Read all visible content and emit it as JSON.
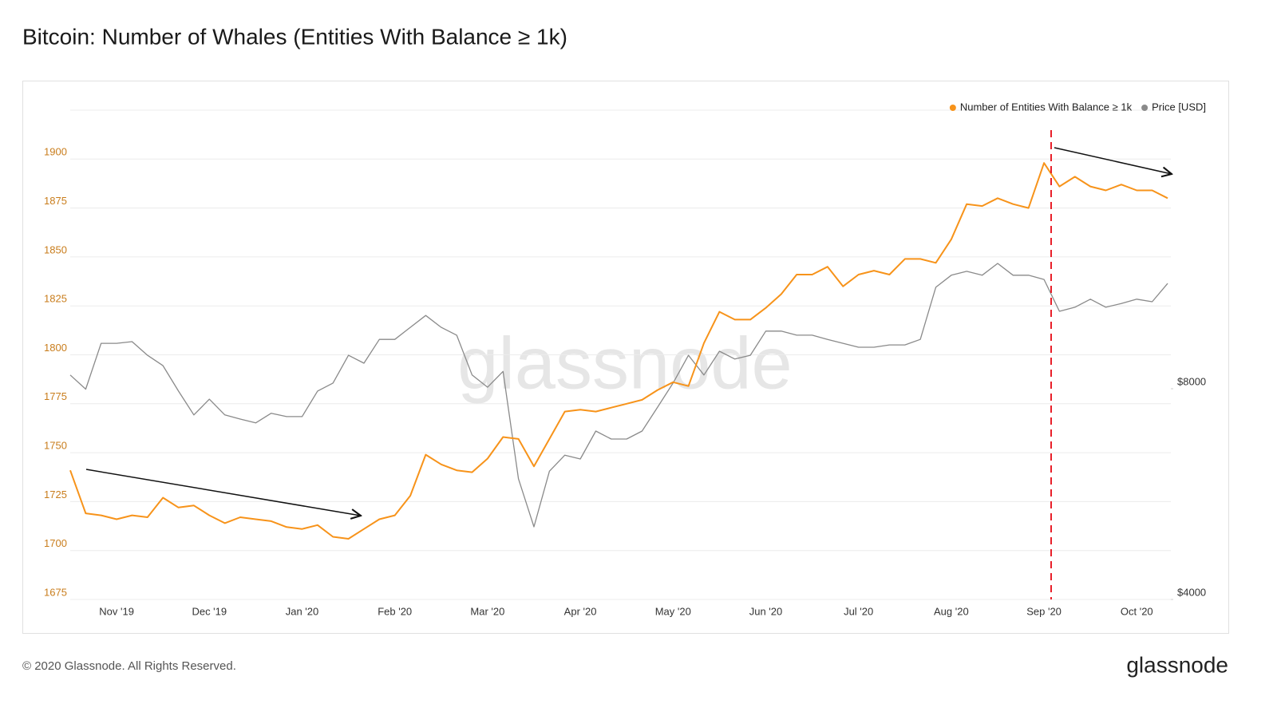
{
  "chart_data": {
    "type": "line",
    "title": "Bitcoin: Number of Whales (Entities With Balance ≥ 1k)",
    "watermark": "glassnode",
    "categories": [
      null,
      null,
      null,
      "Nov '19",
      null,
      null,
      null,
      null,
      null,
      "Dec '19",
      null,
      null,
      null,
      null,
      null,
      "Jan '20",
      null,
      null,
      null,
      null,
      null,
      "Feb '20",
      null,
      null,
      null,
      null,
      null,
      "Mar '20",
      null,
      null,
      null,
      null,
      null,
      "Apr '20",
      null,
      null,
      null,
      null,
      null,
      "May '20",
      null,
      null,
      null,
      null,
      null,
      "Jun '20",
      null,
      null,
      null,
      null,
      null,
      "Jul '20",
      null,
      null,
      null,
      null,
      null,
      "Aug '20",
      null,
      null,
      null,
      null,
      null,
      "Sep '20",
      null,
      null,
      null,
      null,
      null,
      "Oct '20",
      null,
      null
    ],
    "series": [
      {
        "name": "Number of Entities With Balance ≥ 1k",
        "color": "#f7931a",
        "values": [
          1741,
          1719,
          1718,
          1716,
          1718,
          1717,
          1727,
          1722,
          1723,
          1718,
          1714,
          1717,
          1716,
          1715,
          1712,
          1711,
          1713,
          1707,
          1706,
          1711,
          1716,
          1718,
          1728,
          1749,
          1744,
          1741,
          1740,
          1747,
          1758,
          1757,
          1743,
          1757,
          1771,
          1772,
          1771,
          1773,
          1775,
          1777,
          1782,
          1786,
          1784,
          1806,
          1822,
          1818,
          1818,
          1824,
          1831,
          1841,
          1841,
          1845,
          1835,
          1841,
          1843,
          1841,
          1849,
          1849,
          1847,
          1859,
          1877,
          1876,
          1880,
          1877,
          1875,
          1898,
          1886,
          1891,
          1886,
          1884,
          1887,
          1884,
          1884,
          1880
        ]
      },
      {
        "name": "Price [USD]",
        "color": "#8a8a8a",
        "axis": "y2",
        "values": [
          8370,
          7990,
          9290,
          9290,
          9340,
          8930,
          8630,
          7940,
          7340,
          7730,
          7340,
          7240,
          7150,
          7380,
          7300,
          7300,
          7940,
          8150,
          8930,
          8700,
          9410,
          9410,
          9790,
          10180,
          9790,
          9540,
          8370,
          8040,
          8470,
          5950,
          5080,
          6100,
          6430,
          6350,
          6960,
          6780,
          6780,
          6960,
          7530,
          8150,
          8930,
          8370,
          9050,
          8820,
          8930,
          9670,
          9670,
          9540,
          9540,
          9410,
          9290,
          9170,
          9170,
          9240,
          9240,
          9410,
          11170,
          11620,
          11770,
          11620,
          12080,
          11620,
          11620,
          11460,
          10320,
          10460,
          10740,
          10460,
          10590,
          10740,
          10650,
          11310
        ]
      }
    ],
    "ylim": [
      1675,
      1925
    ],
    "yticks": [
      1675,
      1700,
      1725,
      1750,
      1775,
      1800,
      1825,
      1850,
      1875,
      1900
    ],
    "y2lim": [
      4000,
      20000
    ],
    "y2ticks": [
      {
        "value": 4000,
        "label": "$4000"
      },
      {
        "value": 8000,
        "label": "$8000"
      }
    ],
    "y2scale": "log",
    "grid": true,
    "legend": "top-right"
  },
  "footer": {
    "copyright": "© 2020 Glassnode. All Rights Reserved.",
    "logo": "glassnode"
  }
}
